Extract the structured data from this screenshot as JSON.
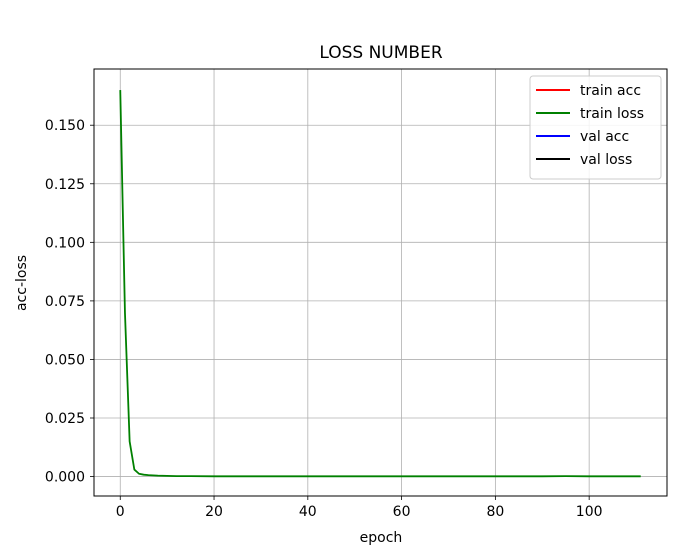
{
  "chart_data": {
    "type": "line",
    "title": "LOSS NUMBER",
    "xlabel": "epoch",
    "ylabel": "acc-loss",
    "xlim": [
      -5.6,
      116.6
    ],
    "ylim": [
      -0.0083,
      0.174
    ],
    "xticks": [
      0,
      20,
      40,
      60,
      80,
      100
    ],
    "xtick_labels": [
      "0",
      "20",
      "40",
      "60",
      "80",
      "100"
    ],
    "yticks": [
      0.0,
      0.025,
      0.05,
      0.075,
      0.1,
      0.125,
      0.15
    ],
    "ytick_labels": [
      "0.000",
      "0.025",
      "0.050",
      "0.075",
      "0.100",
      "0.125",
      "0.150"
    ],
    "grid": true,
    "legend_position": "upper right",
    "series": [
      {
        "name": "train acc",
        "color": "#ff0000",
        "x": [],
        "y": []
      },
      {
        "name": "train loss",
        "color": "#008000",
        "x": [
          0,
          1,
          2,
          3,
          4,
          5,
          6,
          7,
          8,
          10,
          12,
          15,
          20,
          30,
          40,
          50,
          60,
          70,
          80,
          90,
          95,
          100,
          105,
          111
        ],
        "y": [
          0.165,
          0.07,
          0.015,
          0.003,
          0.0012,
          0.0008,
          0.0006,
          0.0005,
          0.0004,
          0.0003,
          0.0002,
          0.0002,
          0.0001,
          0.0001,
          0.0001,
          0.0001,
          0.0001,
          0.0001,
          0.0001,
          0.0001,
          0.0002,
          0.0001,
          0.0001,
          0.0001
        ]
      },
      {
        "name": "val acc",
        "color": "#0000ff",
        "x": [],
        "y": []
      },
      {
        "name": "val loss",
        "color": "#000000",
        "x": [],
        "y": []
      }
    ]
  }
}
